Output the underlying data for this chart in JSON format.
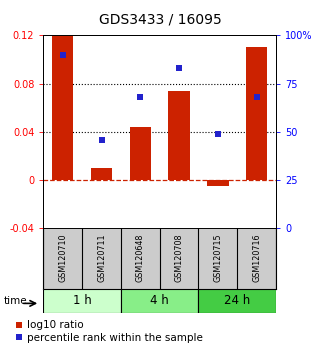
{
  "title": "GDS3433 / 16095",
  "samples": [
    "GSM120710",
    "GSM120711",
    "GSM120648",
    "GSM120708",
    "GSM120715",
    "GSM120716"
  ],
  "log10_ratio": [
    0.121,
    0.01,
    0.044,
    0.074,
    -0.005,
    0.11
  ],
  "percentile_rank": [
    90,
    46,
    68,
    83,
    49,
    68
  ],
  "ylim_left": [
    -0.04,
    0.12
  ],
  "ylim_right": [
    0,
    100
  ],
  "bar_color": "#cc2200",
  "dot_color": "#2222cc",
  "zero_line_color": "#cc2200",
  "time_groups": [
    {
      "label": "1 h",
      "start": 0,
      "end": 2,
      "color": "#ccffcc"
    },
    {
      "label": "4 h",
      "start": 2,
      "end": 4,
      "color": "#88ee88"
    },
    {
      "label": "24 h",
      "start": 4,
      "end": 6,
      "color": "#44cc44"
    }
  ],
  "bg_color": "#ffffff",
  "sample_box_color": "#cccccc",
  "title_fontsize": 10,
  "tick_fontsize": 7,
  "legend_fontsize": 7.5
}
